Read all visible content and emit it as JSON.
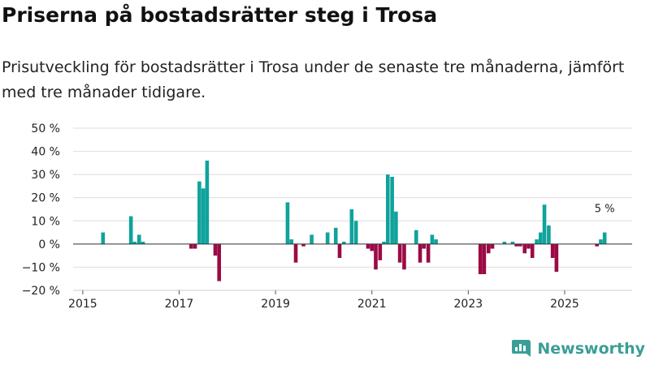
{
  "title": "Priserna på bostadsrätter steg i Trosa",
  "subtitle": "Prisutveckling för bostadsrätter i Trosa under de senaste tre månaderna, jämfört med tre månader tidigare.",
  "brand": {
    "name": "Newsworthy",
    "icon": "newsworthy-logo-icon",
    "color": "#3a9e96"
  },
  "colors": {
    "positive": "#0fa39c",
    "negative": "#9b0a45",
    "grid": "#dddddd",
    "axis": "#333333"
  },
  "chart_data": {
    "type": "bar",
    "title": "Priserna på bostadsrätter steg i Trosa",
    "xlabel": "",
    "ylabel": "",
    "xlim": [
      2014.8,
      2026.4
    ],
    "ylim": [
      -20,
      50
    ],
    "yticks": [
      -20,
      -10,
      0,
      10,
      20,
      30,
      40,
      50
    ],
    "ytick_labels": [
      "−20 %",
      "−10 %",
      "0 %",
      "10 %",
      "20 %",
      "30 %",
      "40 %",
      "50 %"
    ],
    "xticks": [
      2015,
      2017,
      2019,
      2021,
      2023,
      2025
    ],
    "xtick_labels": [
      "2015",
      "2017",
      "2019",
      "2021",
      "2023",
      "2025"
    ],
    "grid": true,
    "annotation": {
      "x": 2025.83,
      "y": 5,
      "text": "5 %"
    },
    "x": [
      2015.42,
      2016.0,
      2016.08,
      2016.17,
      2016.25,
      2017.25,
      2017.33,
      2017.42,
      2017.5,
      2017.58,
      2017.75,
      2017.83,
      2019.25,
      2019.33,
      2019.42,
      2019.58,
      2019.75,
      2020.08,
      2020.25,
      2020.33,
      2020.42,
      2020.58,
      2020.67,
      2020.92,
      2021.0,
      2021.08,
      2021.17,
      2021.25,
      2021.33,
      2021.42,
      2021.5,
      2021.58,
      2021.67,
      2021.92,
      2022.0,
      2022.08,
      2022.17,
      2022.25,
      2022.33,
      2023.25,
      2023.33,
      2023.42,
      2023.5,
      2023.75,
      2023.92,
      2024.0,
      2024.08,
      2024.17,
      2024.25,
      2024.33,
      2024.42,
      2024.5,
      2024.58,
      2024.67,
      2024.75,
      2024.83,
      2025.67,
      2025.75,
      2025.83
    ],
    "values": [
      5,
      12,
      1,
      4,
      1,
      -2,
      -2,
      27,
      24,
      36,
      -5,
      -16,
      18,
      2,
      -8,
      -1,
      4,
      5,
      7,
      -6,
      1,
      15,
      10,
      -2,
      -3,
      -11,
      -7,
      1,
      30,
      29,
      14,
      -8,
      -11,
      6,
      -8,
      -2,
      -8,
      4,
      2,
      -13,
      -13,
      -4,
      -2,
      1,
      1,
      -1,
      -1,
      -4,
      -2,
      -6,
      2,
      5,
      17,
      8,
      -6,
      -12,
      -1,
      2,
      5
    ]
  }
}
